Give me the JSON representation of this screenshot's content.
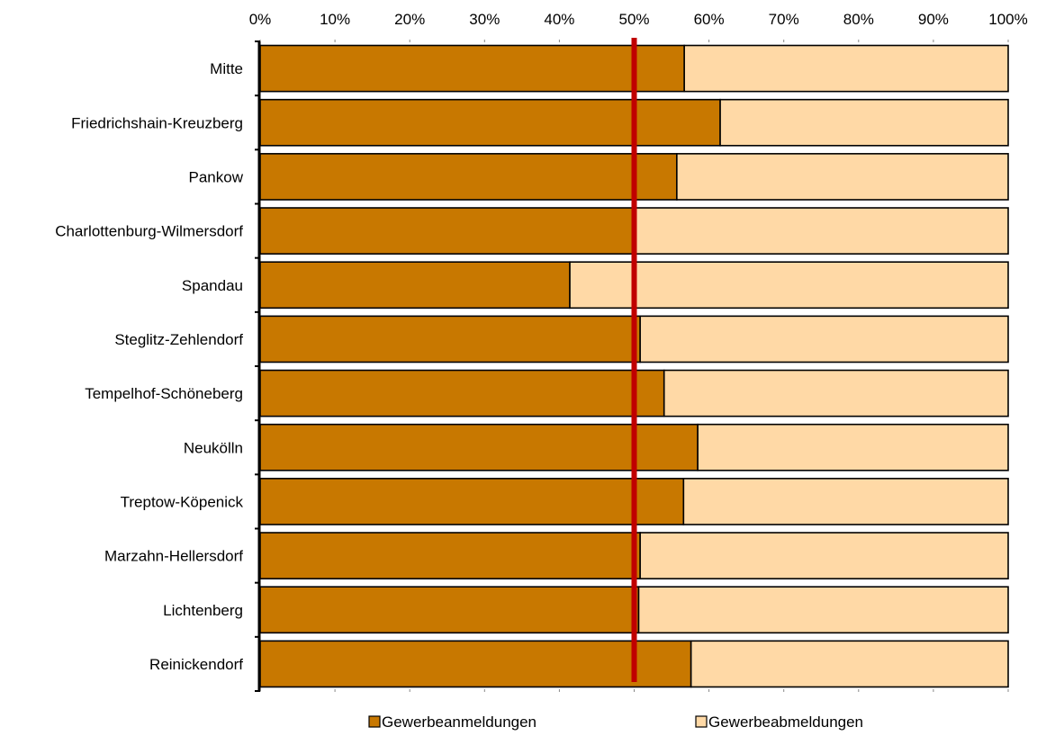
{
  "chart_data": {
    "type": "bar",
    "orientation": "horizontal",
    "stacked": "percent",
    "categories": [
      "Mitte",
      "Friedrichshain-Kreuzberg",
      "Pankow",
      "Charlottenburg-Wilmersdorf",
      "Spandau",
      "Steglitz-Zehlendorf",
      "Tempelhof-Schöneberg",
      "Neukölln",
      "Treptow-Köpenick",
      "Marzahn-Hellersdorf",
      "Lichtenberg",
      "Reinickendorf"
    ],
    "series": [
      {
        "name": "Gewerbeanmeldungen",
        "color": "#c87800",
        "values": [
          56.7,
          61.5,
          55.7,
          50.0,
          41.4,
          50.8,
          54.0,
          58.5,
          56.6,
          50.8,
          50.6,
          57.6
        ]
      },
      {
        "name": "Gewerbeabmeldungen",
        "color": "#ffd9a6",
        "values": [
          43.3,
          38.5,
          44.3,
          50.0,
          58.6,
          49.2,
          46.0,
          41.5,
          43.4,
          49.2,
          49.4,
          42.4
        ]
      }
    ],
    "x_ticks": [
      "0%",
      "10%",
      "20%",
      "30%",
      "40%",
      "50%",
      "60%",
      "70%",
      "80%",
      "90%",
      "100%"
    ],
    "xlim": [
      0,
      100
    ],
    "x_axis_position": "top",
    "reference_line": {
      "value": 50,
      "color": "#c00000"
    },
    "legend_position": "bottom",
    "grid": false,
    "title": "",
    "xlabel": "",
    "ylabel": ""
  }
}
